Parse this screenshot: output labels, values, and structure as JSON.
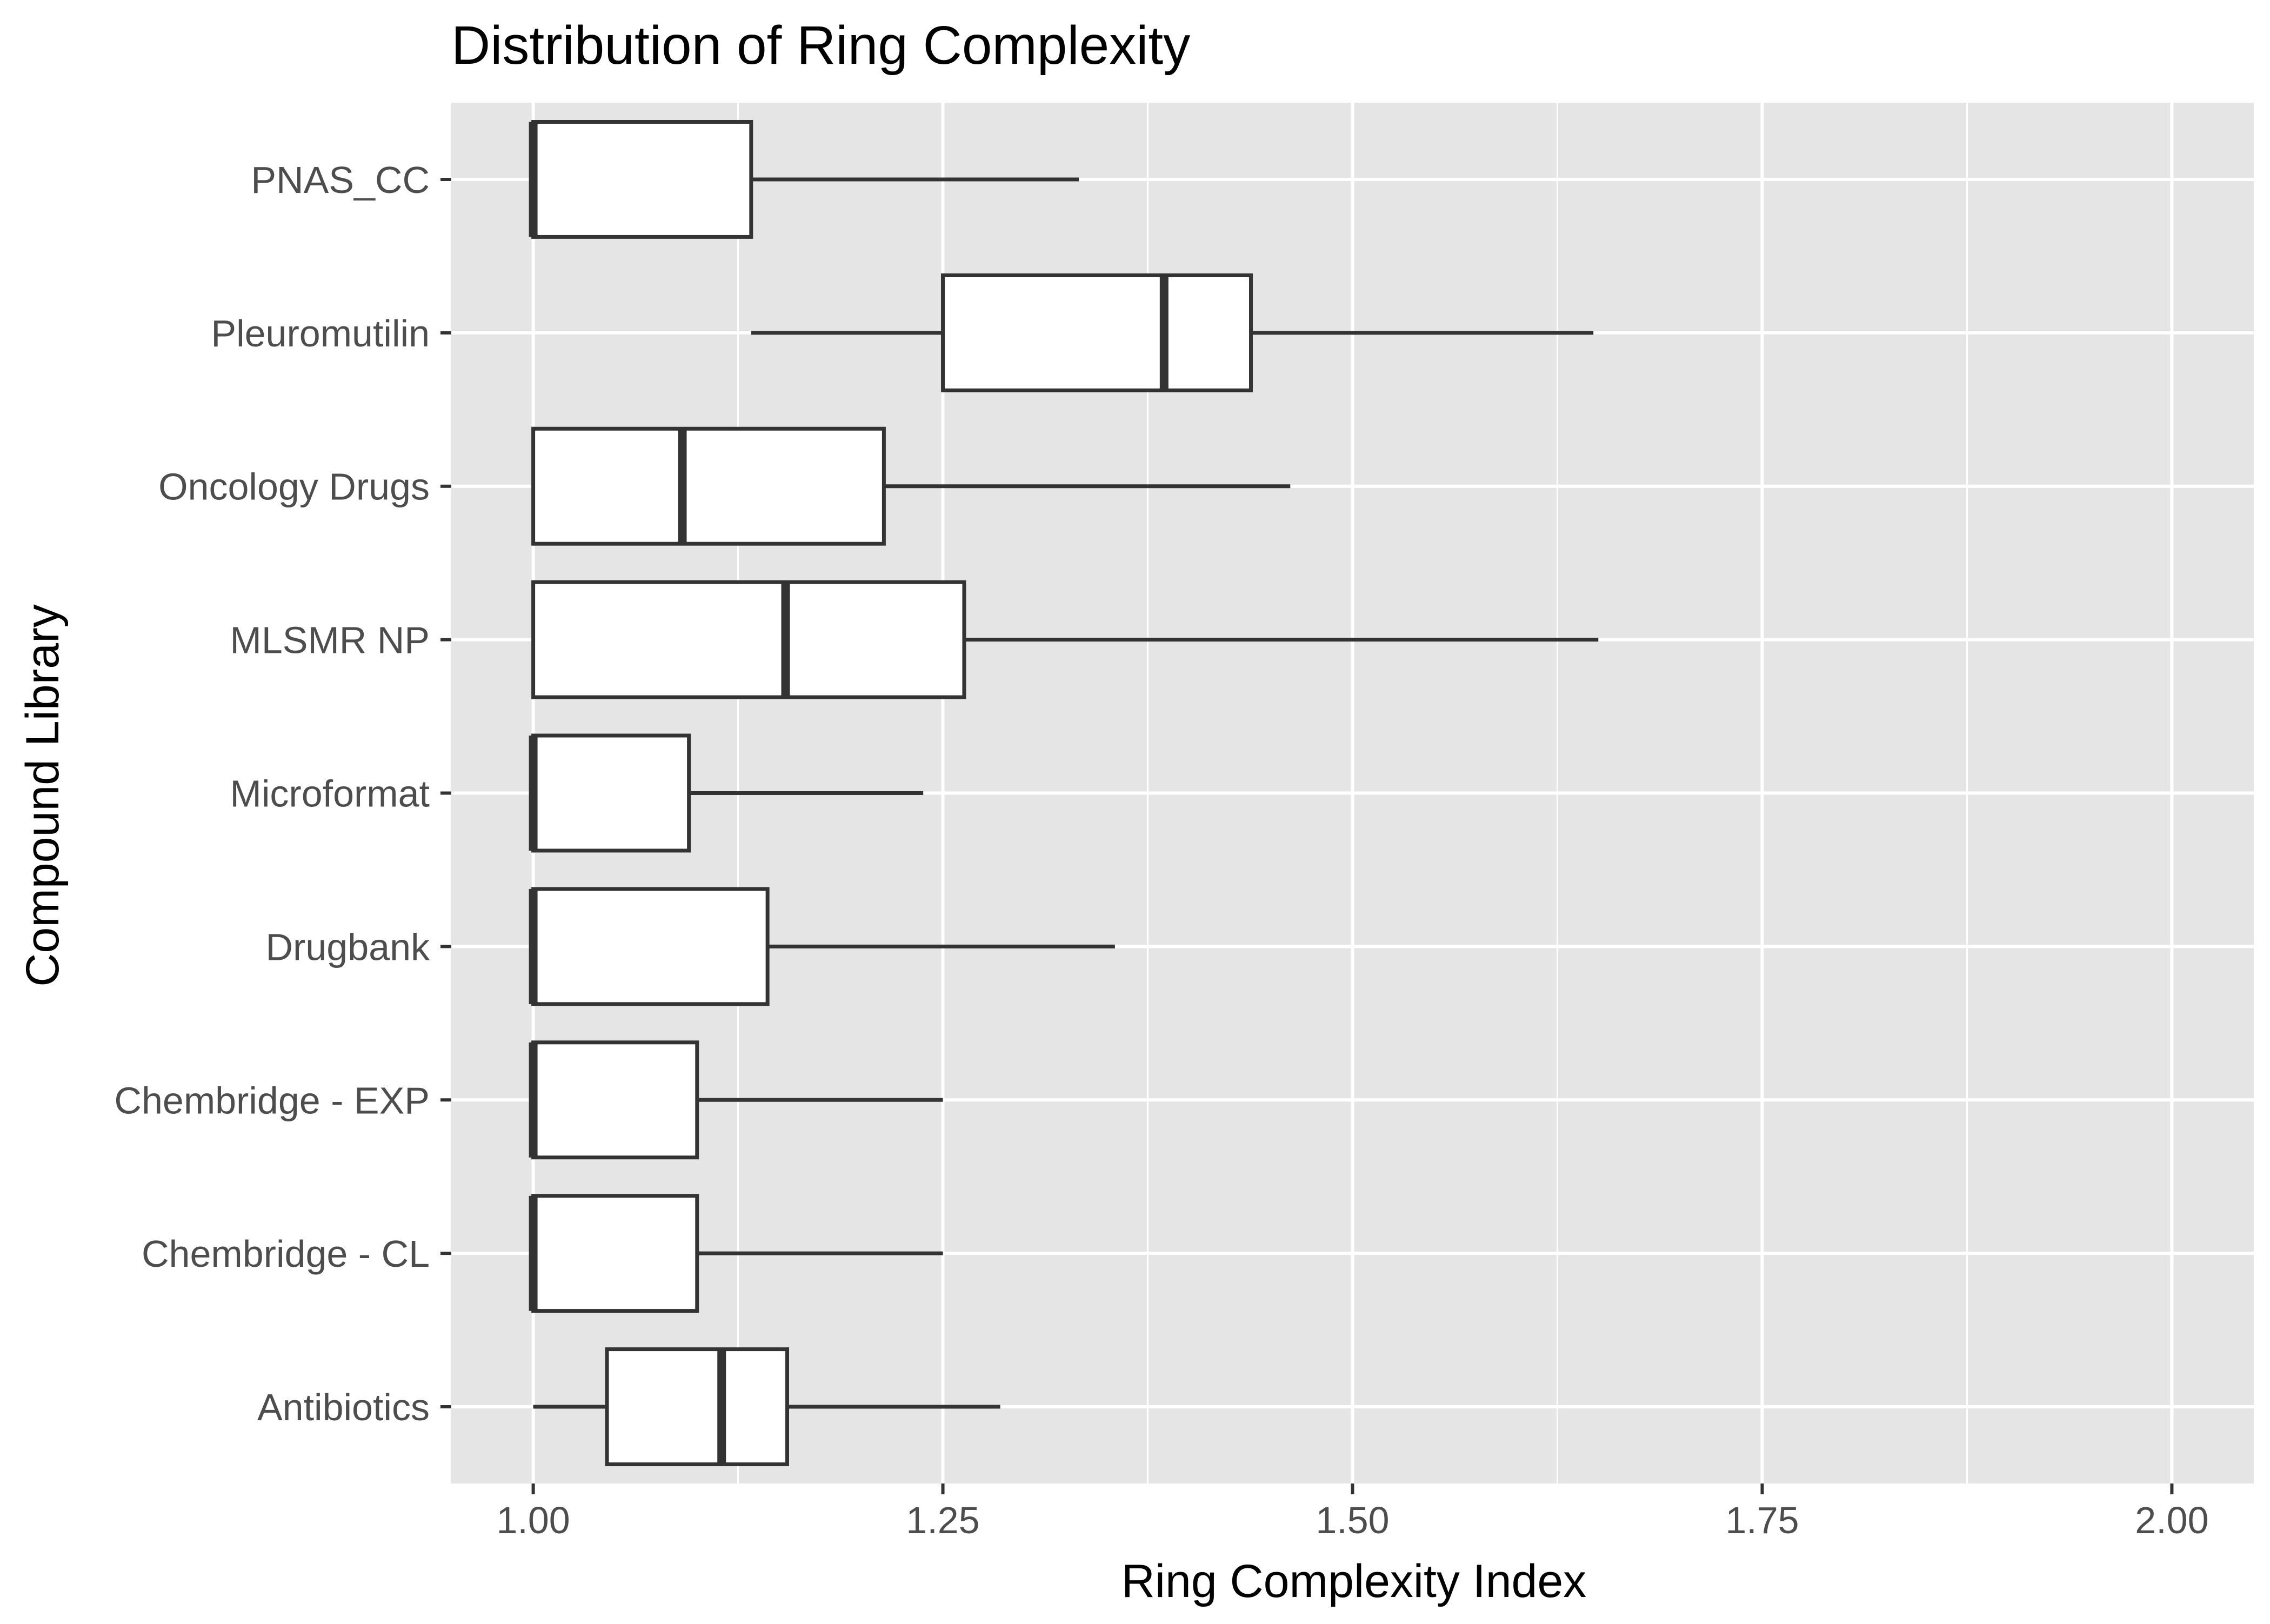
{
  "chart_data": {
    "type": "boxplot",
    "orientation": "horizontal",
    "title": "Distribution of Ring Complexity",
    "xlabel": "Ring Complexity Index",
    "ylabel": "Compound Library",
    "xlim": [
      0.95,
      2.05
    ],
    "x_ticks": [
      1.0,
      1.25,
      1.5,
      1.75,
      2.0
    ],
    "x_tick_labels": [
      "1.00",
      "1.25",
      "1.50",
      "1.75",
      "2.00"
    ],
    "grid": true,
    "legend": "none",
    "categories": [
      "Antibiotics",
      "Chembridge - CL",
      "Chembridge - EXP",
      "Drugbank",
      "Microformat",
      "MLSMR NP",
      "Oncology Drugs",
      "Pleuromutilin",
      "PNAS_CC"
    ],
    "boxes": [
      {
        "category": "Antibiotics",
        "whisker_low": 1.0,
        "q1": 1.045,
        "median": 1.115,
        "q3": 1.155,
        "whisker_high": 1.285
      },
      {
        "category": "Chembridge - CL",
        "whisker_low": 1.0,
        "q1": 1.0,
        "median": 1.0,
        "q3": 1.1,
        "whisker_high": 1.25
      },
      {
        "category": "Chembridge - EXP",
        "whisker_low": 1.0,
        "q1": 1.0,
        "median": 1.0,
        "q3": 1.1,
        "whisker_high": 1.25
      },
      {
        "category": "Drugbank",
        "whisker_low": 1.0,
        "q1": 1.0,
        "median": 1.0,
        "q3": 1.143,
        "whisker_high": 1.355
      },
      {
        "category": "Microformat",
        "whisker_low": 1.0,
        "q1": 1.0,
        "median": 1.0,
        "q3": 1.095,
        "whisker_high": 1.238
      },
      {
        "category": "MLSMR NP",
        "whisker_low": 1.0,
        "q1": 1.0,
        "median": 1.154,
        "q3": 1.263,
        "whisker_high": 1.65
      },
      {
        "category": "Oncology Drugs",
        "whisker_low": 1.0,
        "q1": 1.0,
        "median": 1.091,
        "q3": 1.214,
        "whisker_high": 1.462
      },
      {
        "category": "Pleuromutilin",
        "whisker_low": 1.133,
        "q1": 1.25,
        "median": 1.385,
        "q3": 1.438,
        "whisker_high": 1.647
      },
      {
        "category": "PNAS_CC",
        "whisker_low": 1.0,
        "q1": 1.0,
        "median": 1.0,
        "q3": 1.133,
        "whisker_high": 1.333
      }
    ],
    "colors": {
      "panel_background": "#e5e5e5",
      "grid": "#ffffff",
      "box_fill": "#ffffff",
      "box_stroke": "#333333",
      "tick_label": "#4d4d4d",
      "tick_mark": "#333333"
    }
  }
}
